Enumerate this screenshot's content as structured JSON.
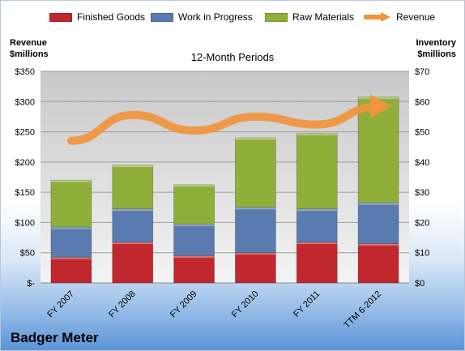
{
  "chart_data": {
    "type": "bar",
    "subtitle": "12-Month Periods",
    "categories": [
      "FY 2007",
      "FY 2008",
      "FY 2009",
      "FY 2010",
      "FY 2011",
      "TTM 6-2012"
    ],
    "series": [
      {
        "name": "Finished Goods",
        "axis": "right",
        "color": "#c0282d",
        "values": [
          8.5,
          13.5,
          9,
          10,
          13.5,
          13
        ]
      },
      {
        "name": "Work in Progress",
        "axis": "right",
        "color": "#5a7bb0",
        "values": [
          10,
          11,
          10.5,
          15,
          11,
          13.5
        ]
      },
      {
        "name": "Raw Materials",
        "axis": "right",
        "color": "#8fae3a",
        "values": [
          15.5,
          14.5,
          13,
          23,
          25,
          35
        ]
      },
      {
        "name": "Revenue",
        "axis": "left",
        "type": "line",
        "color": "#f0943d",
        "values": [
          235,
          278,
          252,
          275,
          262,
          292
        ]
      }
    ],
    "y_left": {
      "title_line1": "Revenue",
      "title_line2": "$millions",
      "ylim": [
        0,
        350
      ],
      "ticks": [
        "$-",
        "$50",
        "$100",
        "$150",
        "$200",
        "$250",
        "$300",
        "$350"
      ]
    },
    "y_right": {
      "title_line1": "Inventory",
      "title_line2": "$millions",
      "ylim": [
        0,
        70
      ],
      "ticks": [
        "$0",
        "$10",
        "$20",
        "$30",
        "$40",
        "$50",
        "$60",
        "$70"
      ]
    },
    "grid": true,
    "legend_position": "top"
  },
  "company_name": "Badger Meter"
}
